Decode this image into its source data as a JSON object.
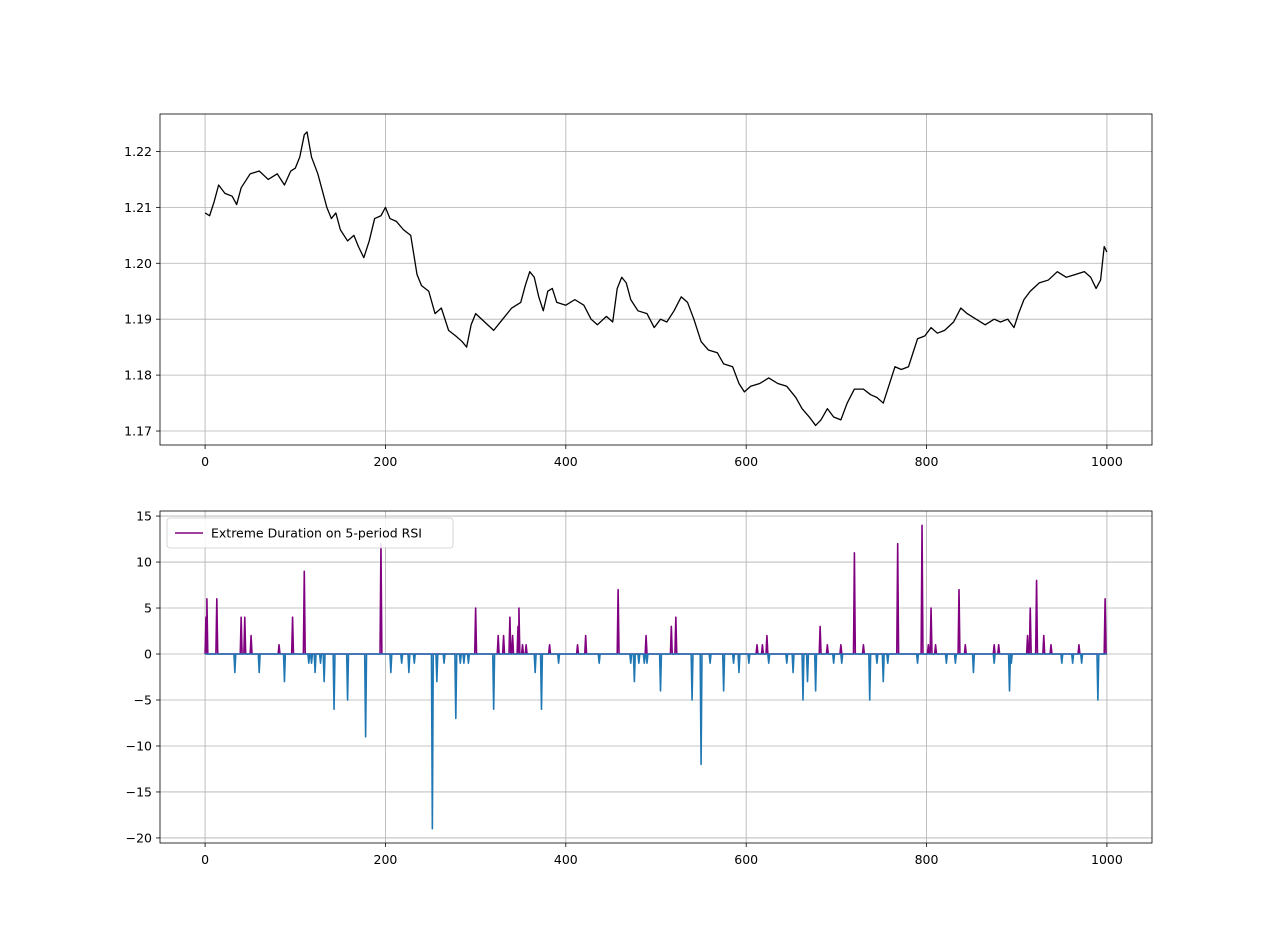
{
  "chart_data": [
    {
      "type": "line",
      "xlim": [
        -50,
        1050
      ],
      "ylim": [
        1.1675,
        1.2267
      ],
      "grid": true,
      "x_ticks": [
        0,
        200,
        400,
        600,
        800,
        1000
      ],
      "x_tick_labels": [
        "0",
        "200",
        "400",
        "600",
        "800",
        "1000"
      ],
      "y_ticks": [
        1.17,
        1.18,
        1.19,
        1.2,
        1.21,
        1.22
      ],
      "y_tick_labels": [
        "1.17",
        "1.18",
        "1.19",
        "1.20",
        "1.21",
        "1.22"
      ],
      "series": [
        {
          "color": "#000000",
          "points": [
            [
              0,
              1.209
            ],
            [
              5,
              1.2085
            ],
            [
              10,
              1.211
            ],
            [
              15,
              1.214
            ],
            [
              22,
              1.2125
            ],
            [
              30,
              1.212
            ],
            [
              35,
              1.2105
            ],
            [
              40,
              1.2135
            ],
            [
              50,
              1.216
            ],
            [
              60,
              1.2165
            ],
            [
              70,
              1.215
            ],
            [
              80,
              1.216
            ],
            [
              88,
              1.214
            ],
            [
              95,
              1.2165
            ],
            [
              100,
              1.217
            ],
            [
              105,
              1.219
            ],
            [
              110,
              1.223
            ],
            [
              113,
              1.2235
            ],
            [
              118,
              1.219
            ],
            [
              125,
              1.216
            ],
            [
              130,
              1.213
            ],
            [
              135,
              1.21
            ],
            [
              140,
              1.208
            ],
            [
              145,
              1.209
            ],
            [
              150,
              1.206
            ],
            [
              158,
              1.204
            ],
            [
              165,
              1.205
            ],
            [
              170,
              1.203
            ],
            [
              176,
              1.201
            ],
            [
              182,
              1.204
            ],
            [
              188,
              1.208
            ],
            [
              195,
              1.2085
            ],
            [
              200,
              1.21
            ],
            [
              205,
              1.208
            ],
            [
              212,
              1.2075
            ],
            [
              220,
              1.206
            ],
            [
              228,
              1.205
            ],
            [
              235,
              1.198
            ],
            [
              240,
              1.196
            ],
            [
              248,
              1.195
            ],
            [
              255,
              1.191
            ],
            [
              262,
              1.192
            ],
            [
              270,
              1.188
            ],
            [
              278,
              1.187
            ],
            [
              285,
              1.186
            ],
            [
              290,
              1.185
            ],
            [
              295,
              1.189
            ],
            [
              300,
              1.191
            ],
            [
              310,
              1.1895
            ],
            [
              320,
              1.188
            ],
            [
              330,
              1.19
            ],
            [
              340,
              1.192
            ],
            [
              350,
              1.193
            ],
            [
              355,
              1.196
            ],
            [
              360,
              1.1985
            ],
            [
              365,
              1.1975
            ],
            [
              370,
              1.194
            ],
            [
              375,
              1.1915
            ],
            [
              380,
              1.195
            ],
            [
              385,
              1.1955
            ],
            [
              390,
              1.193
            ],
            [
              400,
              1.1925
            ],
            [
              410,
              1.1935
            ],
            [
              420,
              1.1925
            ],
            [
              428,
              1.19
            ],
            [
              435,
              1.189
            ],
            [
              445,
              1.1905
            ],
            [
              452,
              1.1895
            ],
            [
              457,
              1.1955
            ],
            [
              462,
              1.1975
            ],
            [
              467,
              1.1965
            ],
            [
              472,
              1.1935
            ],
            [
              480,
              1.1915
            ],
            [
              490,
              1.191
            ],
            [
              498,
              1.1885
            ],
            [
              505,
              1.19
            ],
            [
              512,
              1.1895
            ],
            [
              520,
              1.1915
            ],
            [
              528,
              1.194
            ],
            [
              535,
              1.193
            ],
            [
              542,
              1.19
            ],
            [
              550,
              1.186
            ],
            [
              558,
              1.1845
            ],
            [
              568,
              1.184
            ],
            [
              575,
              1.182
            ],
            [
              585,
              1.1815
            ],
            [
              592,
              1.1785
            ],
            [
              598,
              1.177
            ],
            [
              605,
              1.178
            ],
            [
              615,
              1.1785
            ],
            [
              625,
              1.1795
            ],
            [
              635,
              1.1785
            ],
            [
              645,
              1.178
            ],
            [
              655,
              1.176
            ],
            [
              662,
              1.174
            ],
            [
              670,
              1.1725
            ],
            [
              677,
              1.171
            ],
            [
              683,
              1.172
            ],
            [
              690,
              1.174
            ],
            [
              697,
              1.1725
            ],
            [
              705,
              1.172
            ],
            [
              712,
              1.175
            ],
            [
              720,
              1.1775
            ],
            [
              730,
              1.1775
            ],
            [
              738,
              1.1765
            ],
            [
              745,
              1.176
            ],
            [
              752,
              1.175
            ],
            [
              758,
              1.178
            ],
            [
              765,
              1.1815
            ],
            [
              772,
              1.181
            ],
            [
              780,
              1.1815
            ],
            [
              785,
              1.184
            ],
            [
              790,
              1.1865
            ],
            [
              798,
              1.187
            ],
            [
              805,
              1.1885
            ],
            [
              812,
              1.1875
            ],
            [
              820,
              1.188
            ],
            [
              830,
              1.1895
            ],
            [
              838,
              1.192
            ],
            [
              845,
              1.191
            ],
            [
              855,
              1.19
            ],
            [
              865,
              1.189
            ],
            [
              875,
              1.19
            ],
            [
              882,
              1.1895
            ],
            [
              890,
              1.19
            ],
            [
              897,
              1.1885
            ],
            [
              902,
              1.191
            ],
            [
              908,
              1.1935
            ],
            [
              915,
              1.195
            ],
            [
              925,
              1.1965
            ],
            [
              935,
              1.197
            ],
            [
              945,
              1.1985
            ],
            [
              955,
              1.1975
            ],
            [
              965,
              1.198
            ],
            [
              975,
              1.1985
            ],
            [
              982,
              1.1975
            ],
            [
              988,
              1.1955
            ],
            [
              993,
              1.197
            ],
            [
              997,
              1.203
            ],
            [
              1000,
              1.202
            ]
          ]
        }
      ]
    },
    {
      "type": "line",
      "xlim": [
        -50,
        1050
      ],
      "ylim": [
        -20.55,
        15.55
      ],
      "grid": true,
      "legend_position": "upper-left",
      "x_ticks": [
        0,
        200,
        400,
        600,
        800,
        1000
      ],
      "x_tick_labels": [
        "0",
        "200",
        "400",
        "600",
        "800",
        "1000"
      ],
      "y_ticks": [
        -20,
        -15,
        -10,
        -5,
        0,
        5,
        10,
        15
      ],
      "y_tick_labels": [
        "−20",
        "−15",
        "−10",
        "−5",
        "0",
        "5",
        "10",
        "15"
      ],
      "series": [
        {
          "name": "Extreme Duration on 5-period RSI",
          "color": "#800080",
          "spikes": [
            [
              1,
              4
            ],
            [
              2,
              6
            ],
            [
              13,
              6
            ],
            [
              40,
              4
            ],
            [
              44,
              4
            ],
            [
              51,
              2
            ],
            [
              82,
              1
            ],
            [
              97,
              4
            ],
            [
              110,
              9
            ],
            [
              195,
              12
            ],
            [
              300,
              5
            ],
            [
              325,
              2
            ],
            [
              331,
              2
            ],
            [
              338,
              4
            ],
            [
              341,
              2
            ],
            [
              347,
              3
            ],
            [
              348,
              5
            ],
            [
              352,
              1
            ],
            [
              356,
              1
            ],
            [
              382,
              1
            ],
            [
              413,
              1
            ],
            [
              422,
              2
            ],
            [
              458,
              7
            ],
            [
              489,
              2
            ],
            [
              517,
              3
            ],
            [
              522,
              4
            ],
            [
              612,
              1
            ],
            [
              618,
              1
            ],
            [
              623,
              2
            ],
            [
              682,
              3
            ],
            [
              690,
              1
            ],
            [
              705,
              1
            ],
            [
              720,
              11
            ],
            [
              730,
              1
            ],
            [
              768,
              12
            ],
            [
              795,
              14
            ],
            [
              802,
              1
            ],
            [
              805,
              5
            ],
            [
              810,
              1
            ],
            [
              836,
              7
            ],
            [
              843,
              1
            ],
            [
              875,
              1
            ],
            [
              880,
              1
            ],
            [
              912,
              2
            ],
            [
              915,
              5
            ],
            [
              922,
              8
            ],
            [
              930,
              2
            ],
            [
              938,
              1
            ],
            [
              969,
              1
            ],
            [
              998,
              6
            ]
          ]
        },
        {
          "color": "#1f77b4",
          "spikes": [
            [
              33,
              -2
            ],
            [
              60,
              -2
            ],
            [
              88,
              -3
            ],
            [
              115,
              -1
            ],
            [
              118,
              -1
            ],
            [
              122,
              -2
            ],
            [
              128,
              -1
            ],
            [
              132,
              -3
            ],
            [
              143,
              -6
            ],
            [
              158,
              -5
            ],
            [
              178,
              -9
            ],
            [
              206,
              -2
            ],
            [
              218,
              -1
            ],
            [
              226,
              -2
            ],
            [
              232,
              -1
            ],
            [
              252,
              -19
            ],
            [
              257,
              -3
            ],
            [
              265,
              -1
            ],
            [
              278,
              -7
            ],
            [
              283,
              -1
            ],
            [
              287,
              -1
            ],
            [
              292,
              -1
            ],
            [
              320,
              -6
            ],
            [
              366,
              -2
            ],
            [
              373,
              -6
            ],
            [
              392,
              -1
            ],
            [
              437,
              -1
            ],
            [
              472,
              -1
            ],
            [
              476,
              -3
            ],
            [
              481,
              -1
            ],
            [
              487,
              -1
            ],
            [
              490,
              -1
            ],
            [
              505,
              -4
            ],
            [
              540,
              -5
            ],
            [
              550,
              -12
            ],
            [
              560,
              -1
            ],
            [
              575,
              -4
            ],
            [
              586,
              -1
            ],
            [
              592,
              -2
            ],
            [
              603,
              -1
            ],
            [
              625,
              -1
            ],
            [
              645,
              -1
            ],
            [
              652,
              -2
            ],
            [
              663,
              -5
            ],
            [
              668,
              -3
            ],
            [
              677,
              -4
            ],
            [
              697,
              -1
            ],
            [
              706,
              -1
            ],
            [
              737,
              -5
            ],
            [
              745,
              -1
            ],
            [
              752,
              -3
            ],
            [
              757,
              -1
            ],
            [
              790,
              -1
            ],
            [
              822,
              -1
            ],
            [
              832,
              -1
            ],
            [
              852,
              -2
            ],
            [
              875,
              -1
            ],
            [
              892,
              -4
            ],
            [
              894,
              -1
            ],
            [
              950,
              -1
            ],
            [
              962,
              -1
            ],
            [
              972,
              -1
            ],
            [
              990,
              -5
            ]
          ]
        }
      ]
    }
  ]
}
